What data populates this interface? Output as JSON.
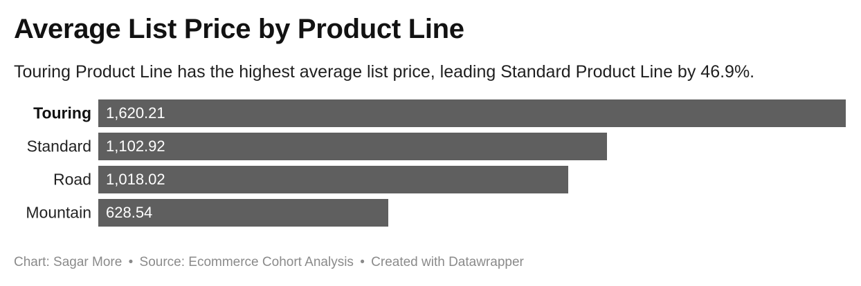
{
  "title": "Average List Price by Product Line",
  "subtitle": "Touring Product Line has the highest average list price, leading Standard Product Line by 46.9%.",
  "chart_data": {
    "type": "bar",
    "orientation": "horizontal",
    "categories": [
      "Touring",
      "Standard",
      "Road",
      "Mountain"
    ],
    "values": [
      1620.21,
      1102.92,
      1018.02,
      628.54
    ],
    "value_labels": [
      "1,620.21",
      "1,102.92",
      "1,018.02",
      "628.54"
    ],
    "highlight_category": "Touring",
    "xlim": [
      0,
      1620.21
    ],
    "bar_color": "#5f5f5f",
    "value_label_color": "#ffffff",
    "grid": false,
    "legend": false
  },
  "footer": {
    "chart_credit": "Chart: Sagar More",
    "source": "Source: Ecommerce Cohort Analysis",
    "tool": "Created with Datawrapper",
    "separator": "•"
  }
}
